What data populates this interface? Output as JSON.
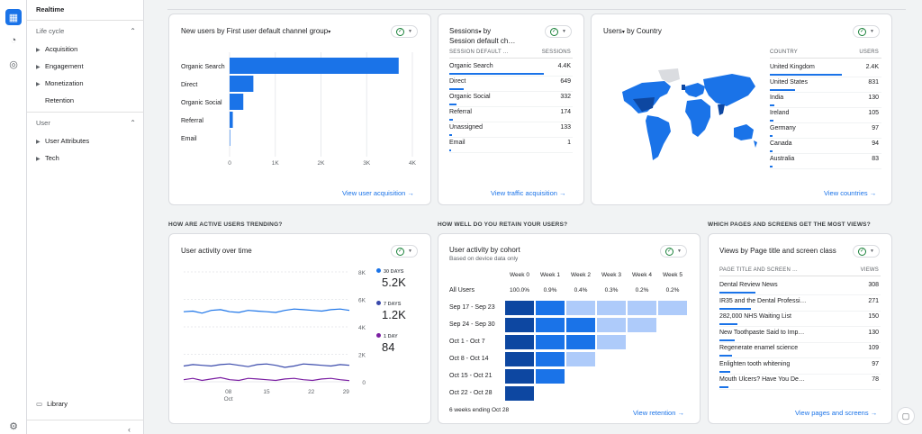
{
  "sidebar": {
    "realtime": "Realtime",
    "lifecycle": "Life cycle",
    "lifecycle_items": [
      "Acquisition",
      "Engagement",
      "Monetization",
      "Retention"
    ],
    "user": "User",
    "user_items": [
      "User Attributes",
      "Tech"
    ],
    "library": "Library"
  },
  "card_acq": {
    "title": "New users by First user default channel group",
    "categories": [
      "Organic Search",
      "Direct",
      "Organic Social",
      "Referral",
      "Email"
    ],
    "ticks": [
      "0",
      "1K",
      "2K",
      "3K",
      "4K"
    ],
    "link": "View user acquisition"
  },
  "card_sessions": {
    "title1": "Sessions",
    "title2": "by",
    "title3": "Session default ch…",
    "col1": "SESSION DEFAULT …",
    "col2": "SESSIONS",
    "rows": [
      {
        "label": "Organic Search",
        "value": "4.4K"
      },
      {
        "label": "Direct",
        "value": "649"
      },
      {
        "label": "Organic Social",
        "value": "332"
      },
      {
        "label": "Referral",
        "value": "174"
      },
      {
        "label": "Unassigned",
        "value": "133"
      },
      {
        "label": "Email",
        "value": "1"
      }
    ],
    "link": "View traffic acquisition"
  },
  "card_country": {
    "title1": "Users",
    "title2": "by Country",
    "col1": "COUNTRY",
    "col2": "USERS",
    "rows": [
      {
        "label": "United Kingdom",
        "value": "2.4K"
      },
      {
        "label": "United States",
        "value": "831"
      },
      {
        "label": "India",
        "value": "130"
      },
      {
        "label": "Ireland",
        "value": "105"
      },
      {
        "label": "Germany",
        "value": "97"
      },
      {
        "label": "Canada",
        "value": "94"
      },
      {
        "label": "Australia",
        "value": "83"
      }
    ],
    "link": "View countries"
  },
  "sections": {
    "trend": "HOW ARE ACTIVE USERS TRENDING?",
    "retain": "HOW WELL DO YOU RETAIN YOUR USERS?",
    "pages": "WHICH PAGES AND SCREENS GET THE MOST VIEWS?"
  },
  "card_activity": {
    "title": "User activity over time",
    "yticks": [
      "8K",
      "6K",
      "4K",
      "2K",
      "0"
    ],
    "xticks": [
      "08",
      "15",
      "22",
      "29"
    ],
    "xmonth": "Oct",
    "legend": [
      {
        "label": "30 DAYS",
        "value": "5.2K",
        "color": "#1a73e8"
      },
      {
        "label": "7 DAYS",
        "value": "1.2K",
        "color": "#3949ab"
      },
      {
        "label": "1 DAY",
        "value": "84",
        "color": "#7b1fa2"
      }
    ]
  },
  "card_cohort": {
    "title": "User activity by cohort",
    "subtitle": "Based on device data only",
    "weeks": [
      "Week 0",
      "Week 1",
      "Week 2",
      "Week 3",
      "Week 4",
      "Week 5"
    ],
    "all_users": "All Users",
    "all_values": [
      "100.0%",
      "0.9%",
      "0.4%",
      "0.3%",
      "0.2%",
      "0.2%"
    ],
    "cohorts": [
      "Sep 17 - Sep 23",
      "Sep 24 - Sep 30",
      "Oct 1 - Oct 7",
      "Oct 8 - Oct 14",
      "Oct 15 - Oct 21",
      "Oct 22 - Oct 28"
    ],
    "footer": "6 weeks ending Oct 28",
    "link": "View retention"
  },
  "card_pages": {
    "title": "Views by Page title and screen class",
    "col1": "PAGE TITLE AND SCREEN …",
    "col2": "VIEWS",
    "rows": [
      {
        "label": "Dental Review News",
        "value": "308"
      },
      {
        "label": "IR35 and the Dental Professi…",
        "value": "271"
      },
      {
        "label": "282,000 NHS Waiting List",
        "value": "150"
      },
      {
        "label": "New Toothpaste Said to Imp…",
        "value": "130"
      },
      {
        "label": "Regenerate enamel science",
        "value": "109"
      },
      {
        "label": "Enlighten tooth whitening",
        "value": "97"
      },
      {
        "label": "Mouth Ulcers? Have You De…",
        "value": "78"
      }
    ],
    "link": "View pages and screens"
  },
  "chart_data": [
    {
      "type": "bar",
      "orientation": "horizontal",
      "title": "New users by First user default channel group",
      "categories": [
        "Organic Search",
        "Direct",
        "Organic Social",
        "Referral",
        "Email"
      ],
      "values": [
        3700,
        520,
        300,
        70,
        1
      ],
      "xlim": [
        0,
        4000
      ]
    },
    {
      "type": "line",
      "title": "User activity over time",
      "ylim": [
        0,
        8000
      ],
      "series": [
        {
          "name": "30 DAYS",
          "values": [
            5100,
            5150,
            5000,
            5200,
            5250,
            5100,
            5050,
            5200,
            5150,
            5100,
            5050,
            5200,
            5300,
            5250,
            5200,
            5150,
            5250,
            5300,
            5200
          ]
        },
        {
          "name": "7 DAYS",
          "values": [
            1150,
            1250,
            1200,
            1150,
            1250,
            1300,
            1200,
            1100,
            1250,
            1300,
            1200,
            1050,
            1150,
            1300,
            1250,
            1200,
            1150,
            1250,
            1200
          ]
        },
        {
          "name": "1 DAY",
          "values": [
            150,
            250,
            100,
            200,
            300,
            150,
            100,
            250,
            200,
            150,
            100,
            200,
            250,
            150,
            100,
            200,
            250,
            150,
            84
          ]
        }
      ]
    },
    {
      "type": "heatmap",
      "title": "User activity by cohort",
      "rows": [
        "Sep 17 - Sep 23",
        "Sep 24 - Sep 30",
        "Oct 1 - Oct 7",
        "Oct 8 - Oct 14",
        "Oct 15 - Oct 21",
        "Oct 22 - Oct 28"
      ],
      "columns": [
        "Week 0",
        "Week 1",
        "Week 2",
        "Week 3",
        "Week 4",
        "Week 5"
      ],
      "intensity": [
        [
          5,
          3,
          2,
          1,
          1,
          1
        ],
        [
          5,
          3,
          3,
          1,
          1
        ],
        [
          5,
          3,
          3,
          1
        ],
        [
          5,
          3,
          1
        ],
        [
          5,
          3
        ],
        [
          5
        ]
      ]
    }
  ]
}
